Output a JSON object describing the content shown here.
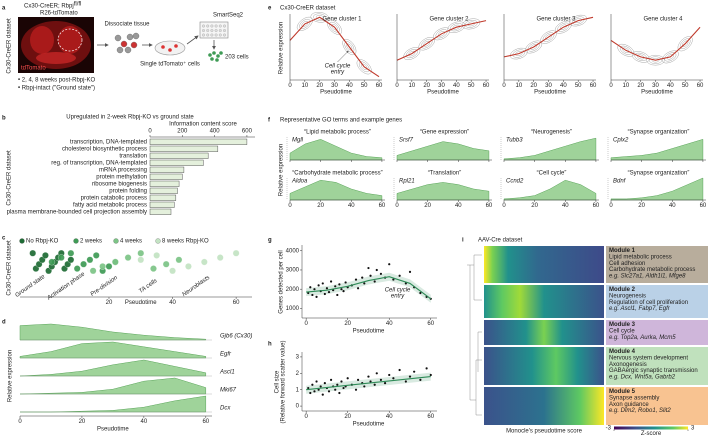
{
  "panel_labels": [
    "a",
    "b",
    "c",
    "d",
    "e",
    "f",
    "g",
    "h",
    "i"
  ],
  "a": {
    "title": "Cx30-CreER; Rbpj",
    "title_sup": "fl/fl",
    "title2": "R26-tdTomato",
    "side_label": "Cx30-CreER dataset",
    "image_label": "tdTomato",
    "step1": "Dissociate tissue",
    "step2": "Single tdTomato⁺ cells",
    "step3": "SmartSeq2",
    "count": "203 cells",
    "bullets": [
      "• 2, 4, 8 weeks post-Rbpj-KO",
      "• Rbpj-intact (\"Ground state\")"
    ]
  },
  "b": {
    "type": "bar",
    "title": "Upregulated in 2-week Rbpj-KO vs ground state",
    "axis_label": "Information content score",
    "side_label": "Cx30-CreER dataset",
    "categories": [
      "transcription, DNA-templated",
      "cholesterol biosynthetic process",
      "translation",
      "reg. of transcription, DNA-templated",
      "mRNA processing",
      "protein methylation",
      "ribosome biogenesis",
      "protein folding",
      "protein catabolic process",
      "fatty acid metabolic process",
      "plasma membrane-bounded cell projection assembly"
    ],
    "values": [
      600,
      420,
      360,
      330,
      210,
      200,
      180,
      170,
      160,
      150,
      130
    ],
    "xlim": [
      0,
      650
    ],
    "xticks": [
      0,
      200,
      400,
      600
    ],
    "color": "#e4f0dc"
  },
  "c": {
    "type": "strip",
    "side_label": "Cx30-CreER dataset",
    "x_label": "Pseudotime",
    "xlim": [
      -8,
      65
    ],
    "xticks": [
      20,
      40,
      60
    ],
    "stages": [
      "Ground state",
      "Activation phase",
      "Pre-division",
      "TA cells",
      "Neuroblasts"
    ],
    "groups": [
      {
        "name": "No Rbpj-KO",
        "color": "#1e6b34",
        "x": [
          -4,
          -3,
          -2,
          -1,
          0,
          1,
          2,
          3,
          4,
          5,
          6,
          7,
          8
        ]
      },
      {
        "name": "2 weeks",
        "color": "#3e9b55",
        "x": [
          2,
          5,
          8,
          10,
          12,
          14,
          16,
          18,
          20,
          22
        ]
      },
      {
        "name": "4 weeks",
        "color": "#7cc486",
        "x": [
          15,
          18,
          22,
          26,
          30,
          34,
          38,
          42
        ]
      },
      {
        "name": "8 weeks Rbpj-KO",
        "color": "#c3e3c3",
        "x": [
          30,
          35,
          40,
          45,
          50,
          55,
          60
        ]
      }
    ]
  },
  "d": {
    "type": "ridge",
    "y_label": "Relative expression",
    "x_label": "Pseudotime",
    "xlim": [
      0,
      62
    ],
    "ylim": [
      0,
      1
    ],
    "xticks": [
      0,
      20,
      40,
      60
    ],
    "color": "#9fd39a",
    "x": [
      0,
      10,
      20,
      30,
      40,
      50,
      60
    ],
    "series": [
      {
        "name": "Gjb6 (Cx30)",
        "values": [
          0.9,
          1,
          0.8,
          0.5,
          0.3,
          0.15,
          0.05
        ]
      },
      {
        "name": "Egfr",
        "values": [
          0.1,
          0.4,
          0.9,
          1,
          0.7,
          0.4,
          0.1
        ]
      },
      {
        "name": "Ascl1",
        "values": [
          0,
          0.1,
          0.3,
          0.7,
          1,
          0.6,
          0.2
        ]
      },
      {
        "name": "Mki67",
        "values": [
          0,
          0.05,
          0.1,
          0.3,
          0.8,
          1,
          0.4
        ]
      },
      {
        "name": "Dcx",
        "values": [
          0,
          0,
          0.05,
          0.1,
          0.3,
          0.7,
          1
        ]
      }
    ]
  },
  "e": {
    "type": "line",
    "title": "Cx30-CreER dataset",
    "y_label": "Relative expression",
    "x_label": "Pseudotime",
    "annotation": [
      "Cell cycle",
      "entry"
    ],
    "xlim": [
      0,
      62
    ],
    "ylim": [
      0,
      1
    ],
    "xticks": [
      0,
      10,
      20,
      30,
      40,
      50,
      60
    ],
    "color": "#c0392b",
    "x": [
      0,
      10,
      20,
      30,
      40,
      50,
      60
    ],
    "series": [
      {
        "name": "Gene cluster 1",
        "values": [
          0.6,
          0.85,
          0.95,
          0.8,
          0.5,
          0.2,
          0.05
        ]
      },
      {
        "name": "Gene cluster 2",
        "values": [
          0.3,
          0.4,
          0.55,
          0.7,
          0.8,
          0.85,
          0.9
        ]
      },
      {
        "name": "Gene cluster 3",
        "values": [
          0.35,
          0.4,
          0.5,
          0.65,
          0.8,
          0.9,
          0.95
        ]
      },
      {
        "name": "Gene cluster 4",
        "values": [
          0.6,
          0.45,
          0.35,
          0.3,
          0.35,
          0.55,
          0.8
        ]
      }
    ]
  },
  "f": {
    "type": "area",
    "title": "Representative GO terms and example genes",
    "y_label": "Relative expression",
    "xlim": [
      0,
      62
    ],
    "ylim": [
      0,
      1
    ],
    "xticks": [
      0,
      20,
      40,
      60
    ],
    "color": "#9fd39a",
    "x": [
      0,
      10,
      20,
      30,
      40,
      50,
      60
    ],
    "series": [
      {
        "name": "“Lipid metabolic process”",
        "gene": "Mgll",
        "values": [
          0.3,
          0.7,
          0.9,
          0.6,
          0.3,
          0.15,
          0.1
        ]
      },
      {
        "name": "“Gene expression”",
        "gene": "Srsf7",
        "values": [
          0.2,
          0.4,
          0.6,
          0.8,
          0.7,
          0.5,
          0.4
        ]
      },
      {
        "name": "“Neurogenesis”",
        "gene": "Tubb3",
        "values": [
          0.05,
          0.1,
          0.2,
          0.4,
          0.6,
          0.8,
          0.95
        ]
      },
      {
        "name": "“Synapse organization”",
        "gene": "Cplx2",
        "values": [
          0.1,
          0.15,
          0.2,
          0.3,
          0.5,
          0.7,
          0.9
        ]
      },
      {
        "name": "“Carbohydrate metabolic process”",
        "gene": "Aldoa",
        "values": [
          0.3,
          0.6,
          0.9,
          0.8,
          0.5,
          0.3,
          0.2
        ]
      },
      {
        "name": "“Translation”",
        "gene": "Rpl21",
        "values": [
          0.3,
          0.5,
          0.7,
          0.8,
          0.7,
          0.5,
          0.4
        ]
      },
      {
        "name": "“Cell cycle”",
        "gene": "Ccnd2",
        "values": [
          0.05,
          0.1,
          0.2,
          0.5,
          0.9,
          0.7,
          0.3
        ]
      },
      {
        "name": "“Synapse organization”",
        "gene": "Bdnf",
        "values": [
          0.05,
          0.05,
          0.1,
          0.2,
          0.4,
          0.7,
          1.0
        ]
      }
    ]
  },
  "g": {
    "type": "scatter",
    "y_label": "Genes detected per cell",
    "x_label": "Pseudotime",
    "annotation": [
      "Cell cycle",
      "entry"
    ],
    "xlim": [
      -2,
      63
    ],
    "ylim": [
      500,
      4300
    ],
    "xticks": [
      0,
      20,
      40,
      60
    ],
    "yticks": [
      1000,
      2000,
      3000,
      4000
    ],
    "point_color": "#111111",
    "fit_color": "#2e8b57",
    "x": [
      1,
      2,
      3,
      4,
      5,
      6,
      7,
      8,
      9,
      10,
      11,
      12,
      13,
      14,
      15,
      16,
      17,
      18,
      19,
      20,
      22,
      24,
      25,
      27,
      28,
      30,
      31,
      33,
      34,
      36,
      38,
      40,
      42,
      45,
      48,
      50,
      52,
      55,
      58,
      60
    ],
    "y": [
      1800,
      2100,
      1700,
      2000,
      1600,
      2200,
      1900,
      2300,
      1750,
      2050,
      1850,
      2400,
      1950,
      2150,
      1700,
      2250,
      2000,
      1900,
      2350,
      2100,
      2200,
      2500,
      2050,
      2600,
      2300,
      3100,
      2700,
      2400,
      3000,
      2800,
      2600,
      3300,
      2500,
      2700,
      2300,
      2900,
      2100,
      1800,
      1600,
      1500
    ],
    "fit_x": [
      0,
      10,
      20,
      30,
      40,
      50,
      60
    ],
    "fit_y": [
      1850,
      1950,
      2150,
      2450,
      2650,
      2300,
      1500
    ]
  },
  "h": {
    "type": "scatter",
    "y_label": [
      "Cell size",
      "(Relative forward scatter value)"
    ],
    "x_label": "Pseudotime",
    "xlim": [
      -2,
      63
    ],
    "ylim": [
      -0.3,
      3.3
    ],
    "xticks": [
      0,
      20,
      40,
      60
    ],
    "yticks": [
      0,
      1,
      2,
      3
    ],
    "point_color": "#111111",
    "fit_color": "#2e8b57",
    "x": [
      1,
      2,
      3,
      4,
      5,
      6,
      7,
      8,
      9,
      10,
      11,
      12,
      13,
      14,
      15,
      16,
      17,
      18,
      19,
      20,
      22,
      24,
      25,
      27,
      28,
      30,
      31,
      33,
      34,
      36,
      38,
      40,
      42,
      45,
      48,
      50,
      52,
      55,
      58,
      60
    ],
    "y": [
      1.1,
      0.8,
      1.3,
      0.9,
      1.5,
      1.0,
      1.2,
      0.7,
      1.4,
      1.1,
      0.9,
      1.6,
      1.2,
      1.0,
      1.3,
      0.8,
      1.5,
      1.1,
      1.2,
      1.7,
      1.3,
      1.0,
      1.6,
      1.4,
      1.2,
      1.8,
      1.5,
      1.3,
      2.0,
      1.6,
      1.4,
      1.9,
      1.7,
      2.2,
      1.5,
      1.8,
      2.1,
      1.6,
      2.3,
      1.9
    ],
    "fit_x": [
      0,
      60
    ],
    "fit_y": [
      1.0,
      1.8
    ]
  },
  "i": {
    "title": "AAV-Cre dataset",
    "x_label": "Monocle's pseudotime score",
    "colorbar": {
      "ticks": [
        -3,
        3
      ],
      "label": "Z-score"
    },
    "modules": [
      {
        "title": "Module 1",
        "color": "#b8ad9c",
        "lines": [
          "Lipid metabolic process",
          "Cell adhesion",
          "Carbohydrate metabolic process",
          "e.g. Slc27a1, Aldh1l1, Mfge8"
        ]
      },
      {
        "title": "Module 2",
        "color": "#bad1e7",
        "lines": [
          "Neurogenesis",
          "Regulation of cell proliferation",
          "e.g. Ascl1, Fabp7, Egfr"
        ]
      },
      {
        "title": "Module 3",
        "color": "#cfb6da",
        "lines": [
          "Cell cycle",
          "e.g. Top2a, Aurka, Mcm5"
        ]
      },
      {
        "title": "Module 4",
        "color": "#c0e1bd",
        "lines": [
          "Nervous system development",
          "Axonogenesis",
          "GABAergic synaptic transmission",
          "e.g. Dcx, Wnt5a, Gabrb2"
        ]
      },
      {
        "title": "Module 5",
        "color": "#f8c391",
        "lines": [
          "Synapse assembly",
          "Axon guidance",
          "e.g. Dlm2, Robo1, Slit2"
        ]
      }
    ]
  }
}
